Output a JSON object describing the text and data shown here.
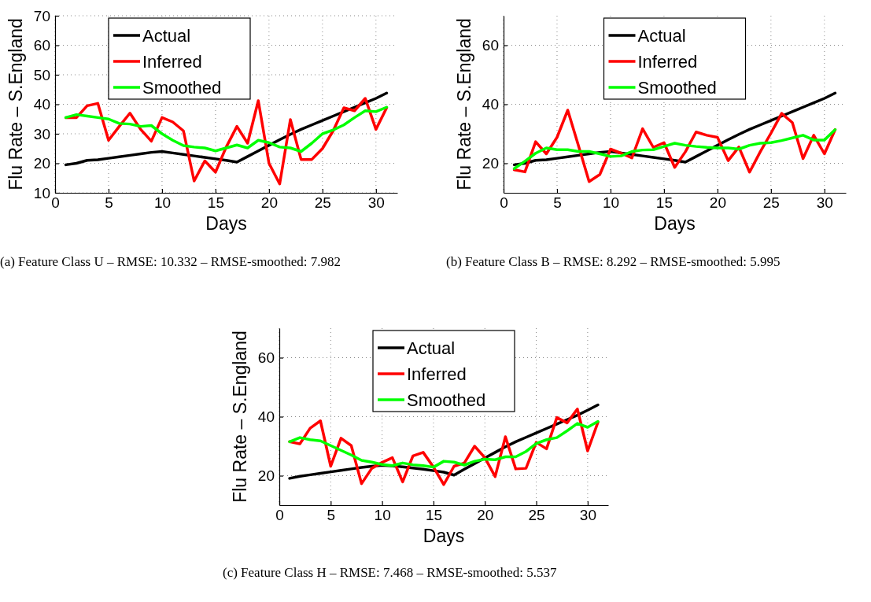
{
  "chart_data": [
    {
      "type": "line",
      "title": "(a) Feature Class U – RMSE: 10.332 – RMSE-smoothed: 7.982",
      "xlabel": "Days",
      "ylabel": "Flu Rate – S.England",
      "x": [
        1,
        2,
        3,
        4,
        5,
        6,
        7,
        8,
        9,
        10,
        11,
        12,
        13,
        14,
        15,
        16,
        17,
        18,
        19,
        20,
        21,
        22,
        23,
        24,
        25,
        26,
        27,
        28,
        29,
        30,
        31
      ],
      "xlim": [
        0,
        32
      ],
      "xticks": [
        0,
        5,
        10,
        15,
        20,
        25,
        30
      ],
      "ylim": [
        10,
        70
      ],
      "yticks": [
        10,
        20,
        30,
        40,
        50,
        60,
        70
      ],
      "grid": true,
      "legend": "top left",
      "line_style": "solid",
      "series": [
        {
          "name": "Actual",
          "color": "#000000",
          "values": [
            19.5,
            20,
            21,
            21.2,
            21.7,
            22.2,
            22.7,
            23.2,
            23.7,
            24,
            23.5,
            23,
            22.5,
            22,
            21.5,
            21,
            20.4,
            22.3,
            24.2,
            26.1,
            28,
            29.8,
            31.5,
            33,
            34.5,
            36,
            37.5,
            39,
            40.5,
            42,
            43.8
          ]
        },
        {
          "name": "Inferred",
          "color": "#ff0000",
          "values": [
            35.5,
            35.5,
            39.5,
            40.3,
            27.8,
            32.5,
            37,
            31.5,
            27.5,
            35.5,
            34,
            31,
            14,
            20.8,
            17,
            25.5,
            32.5,
            26.8,
            41.2,
            20,
            13,
            34.8,
            21.3,
            21.3,
            25,
            31,
            38.8,
            37.8,
            42,
            31.5,
            38.8
          ]
        },
        {
          "name": "Smoothed",
          "color": "#00ff00",
          "values": [
            35.5,
            36.5,
            36,
            35.5,
            35,
            33.5,
            33.3,
            32.5,
            32.8,
            30,
            27.8,
            26,
            25.5,
            25.2,
            24.2,
            25.2,
            26.2,
            25.2,
            27.8,
            27,
            25.5,
            25.2,
            24,
            26.8,
            30,
            31.3,
            33,
            35.5,
            37.8,
            37.5,
            39
          ]
        }
      ]
    },
    {
      "type": "line",
      "title": "(b) Feature Class B – RMSE: 8.292 – RMSE-smoothed: 5.995",
      "xlabel": "Days",
      "ylabel": "Flu Rate – S.England",
      "x": [
        1,
        2,
        3,
        4,
        5,
        6,
        7,
        8,
        9,
        10,
        11,
        12,
        13,
        14,
        15,
        16,
        17,
        18,
        19,
        20,
        21,
        22,
        23,
        24,
        25,
        26,
        27,
        28,
        29,
        30,
        31
      ],
      "xlim": [
        0,
        32
      ],
      "xticks": [
        0,
        5,
        10,
        15,
        20,
        25,
        30
      ],
      "ylim": [
        10,
        70
      ],
      "yticks": [
        20,
        40,
        60
      ],
      "grid": true,
      "legend": "top",
      "line_style": "solid",
      "series": [
        {
          "name": "Actual",
          "color": "#000000",
          "values": [
            19.5,
            20,
            21,
            21.2,
            21.7,
            22.2,
            22.7,
            23.2,
            23.7,
            24,
            23.5,
            23,
            22.5,
            22,
            21.5,
            21,
            20.4,
            22.3,
            24.2,
            26.1,
            28,
            29.8,
            31.5,
            33,
            34.5,
            36,
            37.5,
            39,
            40.5,
            42,
            43.8
          ]
        },
        {
          "name": "Inferred",
          "color": "#ff0000",
          "values": [
            17.8,
            17.1,
            27.3,
            23.2,
            28.8,
            38,
            26,
            13.8,
            16.2,
            24.8,
            23.4,
            21.8,
            31.7,
            25.4,
            27,
            18.6,
            23.9,
            30.6,
            29.5,
            28.8,
            20.9,
            25.5,
            17,
            23.9,
            30.2,
            36.9,
            33.8,
            21.6,
            29.5,
            23.2,
            31.4
          ]
        },
        {
          "name": "Smoothed",
          "color": "#00ff00",
          "values": [
            18.2,
            20.7,
            23.4,
            25.2,
            24.6,
            24.6,
            24,
            24,
            23.2,
            22.3,
            22.5,
            24,
            24.5,
            24.6,
            25.7,
            26.8,
            26.1,
            25.7,
            25.4,
            25.2,
            25.2,
            24.8,
            26.1,
            26.8,
            27,
            27.7,
            28.6,
            29.5,
            27.9,
            27.9,
            31.4
          ]
        }
      ]
    },
    {
      "type": "line",
      "title": "(c) Feature Class H – RMSE: 7.468 – RMSE-smoothed: 5.537",
      "xlabel": "Days",
      "ylabel": "Flu Rate – S.England",
      "x": [
        1,
        2,
        3,
        4,
        5,
        6,
        7,
        8,
        9,
        10,
        11,
        12,
        13,
        14,
        15,
        16,
        17,
        18,
        19,
        20,
        21,
        22,
        23,
        24,
        25,
        26,
        27,
        28,
        29,
        30,
        31
      ],
      "xlim": [
        0,
        32
      ],
      "xticks": [
        0,
        5,
        10,
        15,
        20,
        25,
        30
      ],
      "ylim": [
        10,
        70
      ],
      "yticks": [
        20,
        40,
        60
      ],
      "grid": true,
      "legend": "top",
      "line_style": "solid",
      "series": [
        {
          "name": "Actual",
          "color": "#000000",
          "values": [
            19.1,
            19.8,
            20.3,
            20.8,
            21.3,
            21.8,
            22.3,
            22.8,
            23.2,
            23.5,
            23.3,
            23,
            22.6,
            22.2,
            21.7,
            21.2,
            20.2,
            22.2,
            24.1,
            26,
            27.9,
            29.8,
            31.5,
            33,
            34.5,
            36,
            37.5,
            39,
            40.5,
            42.2,
            44
          ]
        },
        {
          "name": "Inferred",
          "color": "#ff0000",
          "values": [
            31.5,
            30.8,
            36.1,
            38.6,
            23.2,
            32.7,
            30.2,
            17.3,
            22.5,
            24.5,
            26.1,
            17.9,
            26.7,
            27.9,
            22.9,
            17,
            23.2,
            24.3,
            30,
            26.1,
            19.7,
            33.2,
            22.3,
            22.5,
            31.3,
            29.1,
            39.7,
            37.9,
            42.6,
            28.4,
            38.1
          ]
        },
        {
          "name": "Smoothed",
          "color": "#00ff00",
          "values": [
            31.5,
            32.9,
            32.2,
            31.8,
            30.2,
            28.6,
            27,
            25.2,
            24.6,
            23.8,
            23.4,
            24.3,
            23.7,
            23.4,
            22.9,
            24.9,
            24.6,
            23.6,
            24.9,
            25.6,
            25.4,
            26.4,
            26.4,
            28.2,
            30.9,
            32.2,
            32.9,
            35.2,
            37.7,
            36.4,
            38.4
          ]
        }
      ]
    }
  ]
}
